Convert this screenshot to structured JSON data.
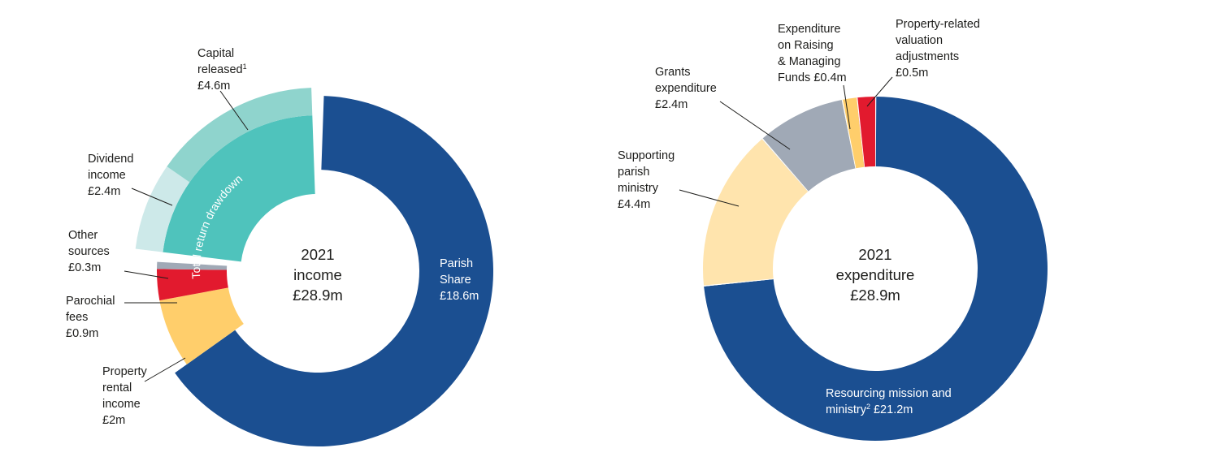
{
  "chart_data": [
    {
      "type": "pie",
      "center_label": [
        "2021",
        "income",
        "£28.9m"
      ],
      "slices": [
        {
          "id": "parish-share",
          "label": [
            "Parish",
            "Share",
            "£18.6m"
          ],
          "value": 18.6,
          "color": "#1b4f91"
        },
        {
          "id": "property-rental",
          "label": [
            "Property",
            "rental",
            "income",
            "£2m"
          ],
          "value": 2.0,
          "color": "#ffce6b"
        },
        {
          "id": "parochial-fees",
          "label": [
            "Parochial",
            "fees",
            "£0.9m"
          ],
          "value": 0.9,
          "color": "#e21a2e"
        },
        {
          "id": "other-sources",
          "label": [
            "Other",
            "sources",
            "£0.3m"
          ],
          "value": 0.3,
          "color": "#a0a9b6"
        },
        {
          "id": "total-return-drawdown",
          "label": "Total return drawdown",
          "value": 7.0,
          "color": "#4fc3bc",
          "breakdown": [
            {
              "id": "dividend-income",
              "label": [
                "Dividend",
                "income",
                "£2.4m"
              ],
              "value": 2.4,
              "color": "#cde9e9"
            },
            {
              "id": "capital-released",
              "label": [
                "Capital",
                "released",
                "£4.6m"
              ],
              "label_sup": "1",
              "value": 4.6,
              "color": "#8fd4cd"
            }
          ]
        }
      ]
    },
    {
      "type": "pie",
      "center_label": [
        "2021",
        "expenditure",
        "£28.9m"
      ],
      "slices": [
        {
          "id": "resourcing-mission",
          "label": [
            "Resourcing mission and",
            "ministry",
            "£21.2m"
          ],
          "label_sup": "2",
          "value": 21.2,
          "color": "#1b4f91"
        },
        {
          "id": "supporting-parish",
          "label": [
            "Supporting",
            "parish",
            "ministry",
            "£4.4m"
          ],
          "value": 4.4,
          "color": "#ffe4ad"
        },
        {
          "id": "grants-expenditure",
          "label": [
            "Grants",
            "expenditure",
            "£2.4m"
          ],
          "value": 2.4,
          "color": "#a0a9b6"
        },
        {
          "id": "raising-funds",
          "label": [
            "Expenditure",
            "on Raising",
            "& Managing",
            "Funds £0.4m"
          ],
          "value": 0.4,
          "color": "#ffce6b"
        },
        {
          "id": "valuation-adjustments",
          "label": [
            "Property-related",
            "valuation",
            "adjustments",
            "£0.5m"
          ],
          "value": 0.5,
          "color": "#e21a2e"
        }
      ]
    }
  ]
}
